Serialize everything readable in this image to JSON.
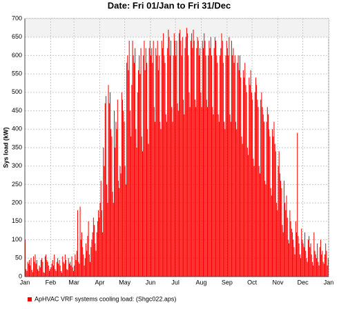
{
  "chart_data": {
    "type": "bar",
    "title": "Date: Fri 01/Jan to Fri 31/Dec",
    "y_label": "Sys load (kW)",
    "series": [
      {
        "name": "ApHVAC VRF systems cooling load:  (Shgc022.aps)",
        "color": "#ff0000",
        "values": [
          100,
          20,
          15,
          40,
          35,
          45,
          30,
          50,
          18,
          12,
          55,
          40,
          60,
          35,
          45,
          20,
          15,
          30,
          25,
          45,
          50,
          40,
          12,
          10,
          55,
          60,
          45,
          40,
          30,
          15,
          20,
          25,
          35,
          45,
          30,
          60,
          20,
          15,
          40,
          50,
          35,
          45,
          30,
          15,
          10,
          55,
          40,
          35,
          60,
          45,
          20,
          18,
          50,
          35,
          40,
          30,
          55,
          25,
          15,
          30,
          60,
          45,
          70,
          180,
          40,
          35,
          190,
          100,
          120,
          80,
          60,
          30,
          50,
          90,
          70,
          110,
          150,
          60,
          40,
          80,
          100,
          120,
          160,
          140,
          90,
          70,
          120,
          150,
          180,
          160,
          200,
          260,
          180,
          120,
          350,
          300,
          470,
          490,
          250,
          200,
          520,
          470,
          500,
          400,
          380,
          230,
          200,
          450,
          350,
          420,
          400,
          480,
          260,
          240,
          300,
          280,
          500,
          480,
          450,
          420,
          300,
          250,
          580,
          600,
          560,
          640,
          450,
          380,
          520,
          640,
          600,
          580,
          620,
          400,
          350,
          500,
          560,
          600,
          550,
          620,
          380,
          340,
          600,
          640,
          560,
          620,
          580,
          400,
          360,
          620,
          640,
          600,
          620,
          580,
          640,
          460,
          420,
          620,
          600,
          640,
          560,
          600,
          420,
          400,
          640,
          620,
          660,
          600,
          580,
          440,
          420,
          620,
          670,
          650,
          600,
          640,
          460,
          420,
          600,
          660,
          640,
          600,
          640,
          470,
          450,
          660,
          670,
          640,
          600,
          650,
          480,
          440,
          620,
          650,
          675,
          660,
          600,
          500,
          460,
          640,
          660,
          620,
          670,
          640,
          480,
          460,
          620,
          650,
          640,
          600,
          620,
          500,
          460,
          640,
          620,
          660,
          640,
          600,
          480,
          460,
          600,
          640,
          620,
          650,
          600,
          460,
          440,
          620,
          650,
          640,
          600,
          580,
          440,
          420,
          600,
          620,
          660,
          640,
          580,
          420,
          400,
          600,
          640,
          620,
          600,
          650,
          440,
          420,
          640,
          600,
          620,
          580,
          600,
          420,
          400,
          580,
          600,
          560,
          600,
          540,
          380,
          360,
          560,
          540,
          580,
          520,
          500,
          350,
          330,
          540,
          520,
          560,
          500,
          480,
          320,
          300,
          500,
          540,
          520,
          480,
          460,
          300,
          280,
          480,
          500,
          460,
          440,
          420,
          260,
          250,
          420,
          460,
          440,
          400,
          380,
          240,
          220,
          400,
          380,
          420,
          360,
          340,
          200,
          180,
          300,
          340,
          280,
          260,
          240,
          140,
          120,
          260,
          200,
          180,
          220,
          160,
          100,
          90,
          180,
          150,
          130,
          120,
          100,
          80,
          60,
          150,
          120,
          390,
          110,
          90,
          60,
          50,
          130,
          100,
          90,
          80,
          120,
          70,
          50,
          40,
          100,
          110,
          80,
          90,
          60,
          40,
          30,
          120,
          70,
          60,
          50,
          90,
          40,
          30,
          80,
          100,
          60,
          70,
          40,
          35,
          60,
          90,
          70,
          30,
          50
        ]
      }
    ],
    "xlim": [
      0,
      365
    ],
    "xticks": [
      {
        "value": 0,
        "label": "Jan"
      },
      {
        "value": 31,
        "label": "Feb"
      },
      {
        "value": 59,
        "label": "Mar"
      },
      {
        "value": 90,
        "label": "Apr"
      },
      {
        "value": 120,
        "label": "May"
      },
      {
        "value": 151,
        "label": "Jun"
      },
      {
        "value": 181,
        "label": "Jul"
      },
      {
        "value": 212,
        "label": "Aug"
      },
      {
        "value": 243,
        "label": "Sep"
      },
      {
        "value": 273,
        "label": "Oct"
      },
      {
        "value": 304,
        "label": "Nov"
      },
      {
        "value": 334,
        "label": "Dec"
      },
      {
        "value": 365,
        "label": "Jan"
      }
    ],
    "ylim": [
      0,
      700
    ],
    "yticks": [
      0,
      50,
      100,
      150,
      200,
      250,
      300,
      350,
      400,
      450,
      500,
      550,
      600,
      650,
      700
    ],
    "grid": true
  }
}
